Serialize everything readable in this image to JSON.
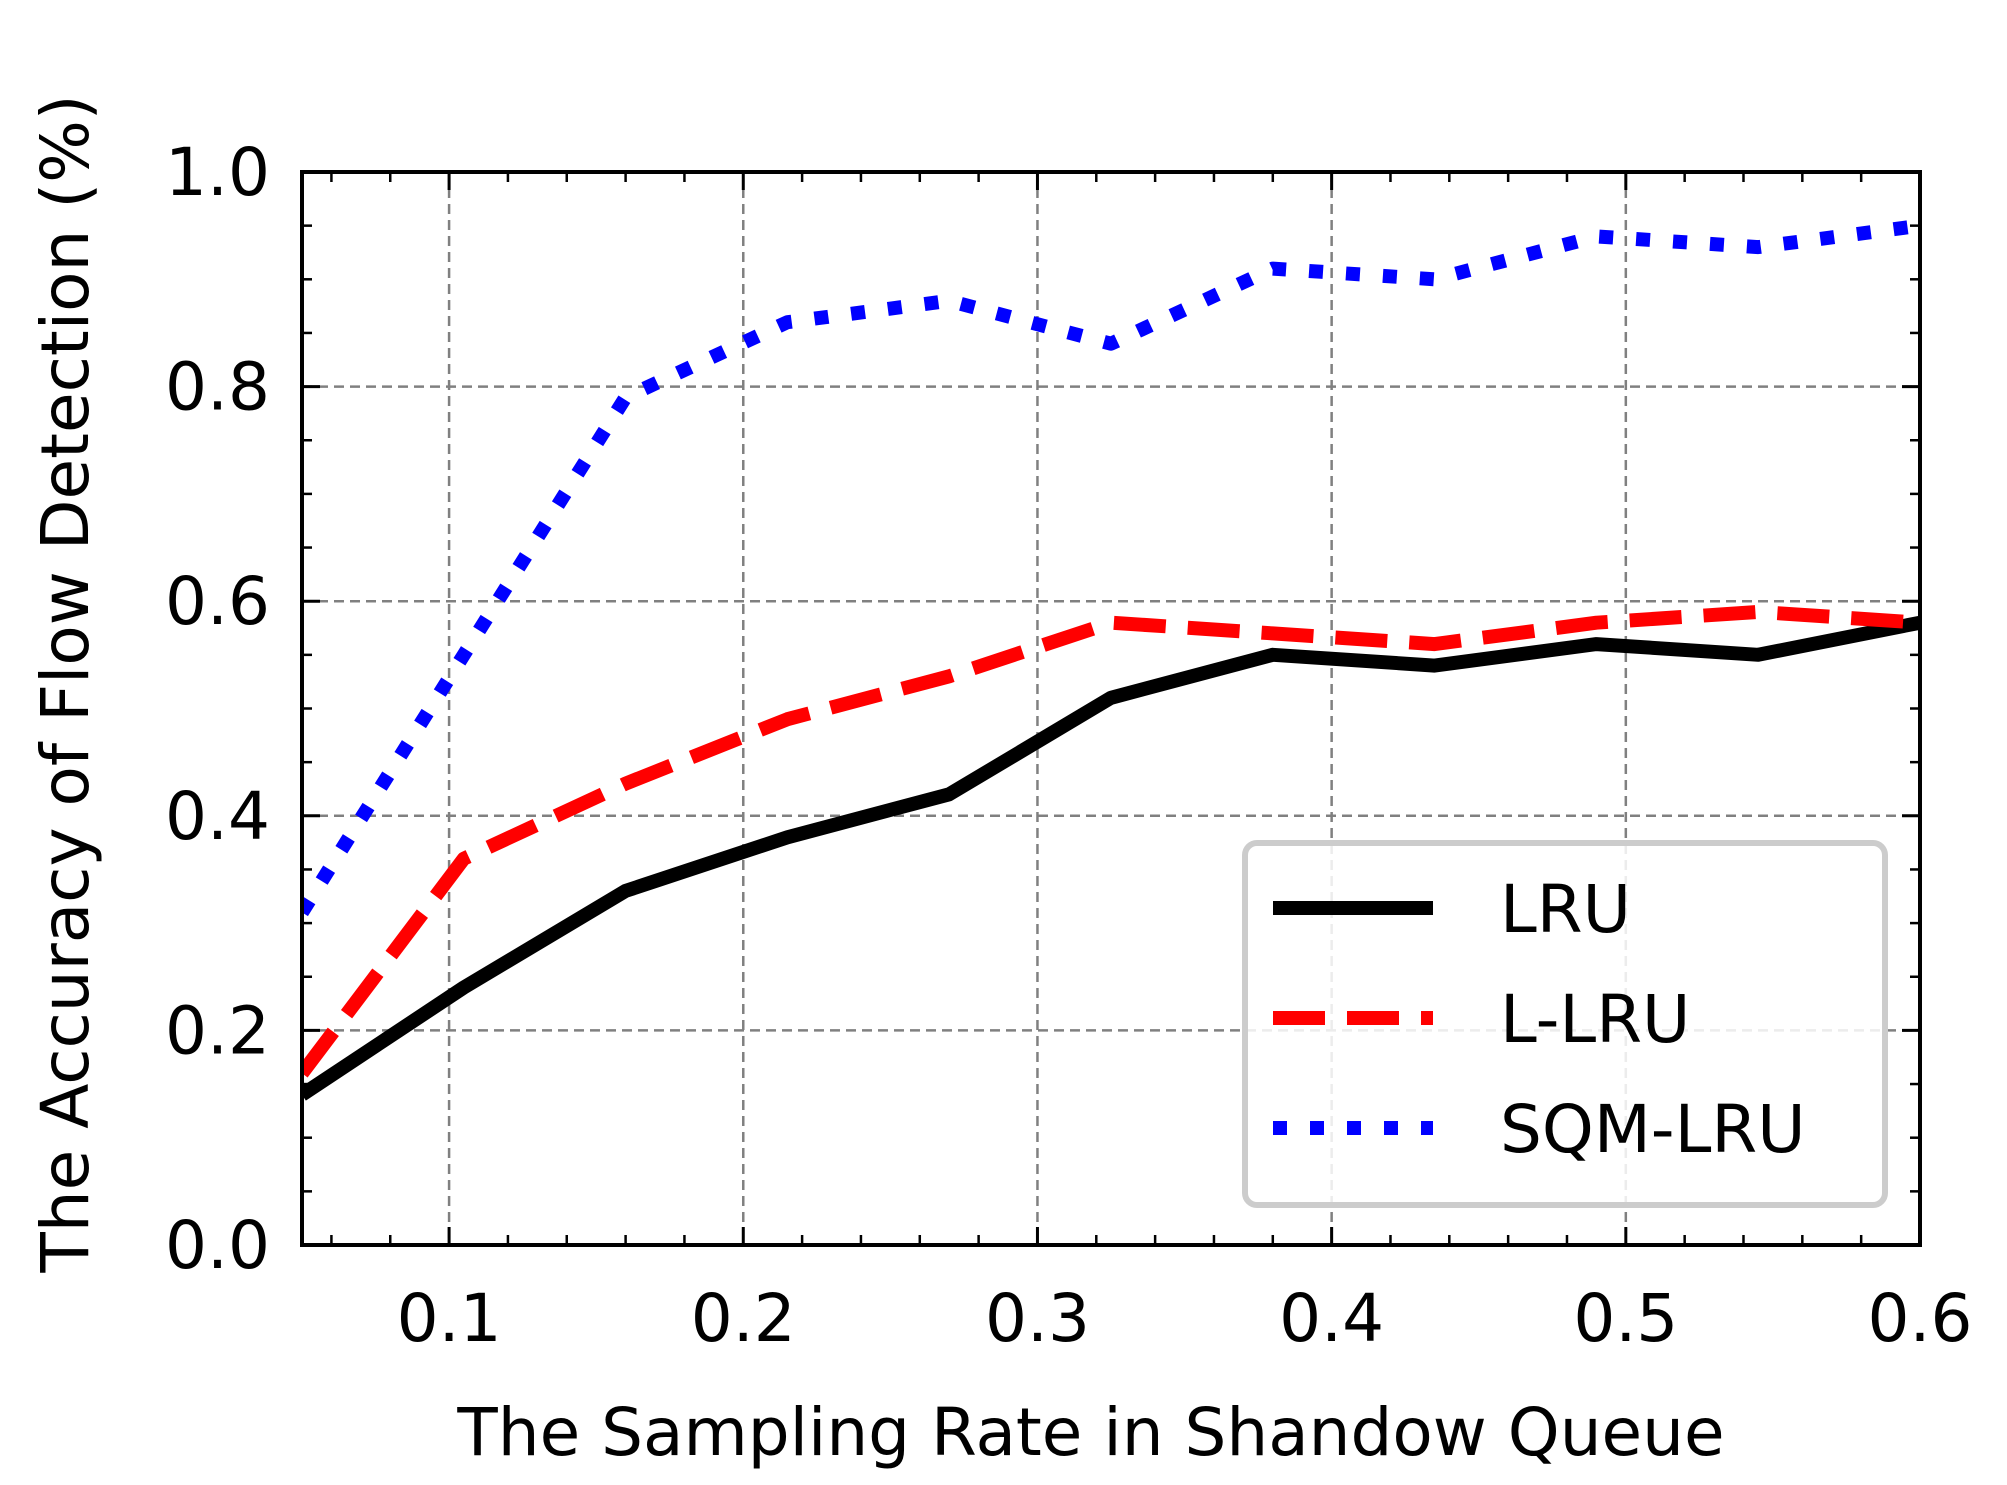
{
  "chart_data": {
    "type": "line",
    "title": "",
    "xlabel": "The Sampling Rate in Shandow Queue",
    "ylabel": "The Accuracy of Flow Detection (%)",
    "xlim": [
      0.05,
      0.6
    ],
    "ylim": [
      0.0,
      1.0
    ],
    "xticks": [
      0.1,
      0.2,
      0.3,
      0.4,
      0.5,
      0.6
    ],
    "xtick_labels": [
      "0.1",
      "0.2",
      "0.3",
      "0.4",
      "0.5",
      "0.6"
    ],
    "yticks": [
      0.0,
      0.2,
      0.4,
      0.6,
      0.8,
      1.0
    ],
    "ytick_labels": [
      "0.0",
      "0.2",
      "0.4",
      "0.6",
      "0.8",
      "1.0"
    ],
    "grid": true,
    "legend_position": "lower-right",
    "x": [
      0.05,
      0.105,
      0.16,
      0.215,
      0.27,
      0.325,
      0.38,
      0.435,
      0.49,
      0.545,
      0.6
    ],
    "series": [
      {
        "name": "LRU",
        "style": "solid",
        "color": "#000000",
        "values": [
          0.14,
          0.24,
          0.33,
          0.38,
          0.42,
          0.51,
          0.55,
          0.54,
          0.56,
          0.55,
          0.58
        ]
      },
      {
        "name": "L-LRU",
        "style": "dashed",
        "color": "#ff0000",
        "values": [
          0.16,
          0.36,
          0.43,
          0.49,
          0.53,
          0.58,
          0.57,
          0.56,
          0.58,
          0.59,
          0.58
        ]
      },
      {
        "name": "SQM-LRU",
        "style": "dotted",
        "color": "#0000ff",
        "values": [
          0.31,
          0.55,
          0.79,
          0.86,
          0.88,
          0.84,
          0.91,
          0.9,
          0.94,
          0.93,
          0.95
        ]
      }
    ]
  }
}
